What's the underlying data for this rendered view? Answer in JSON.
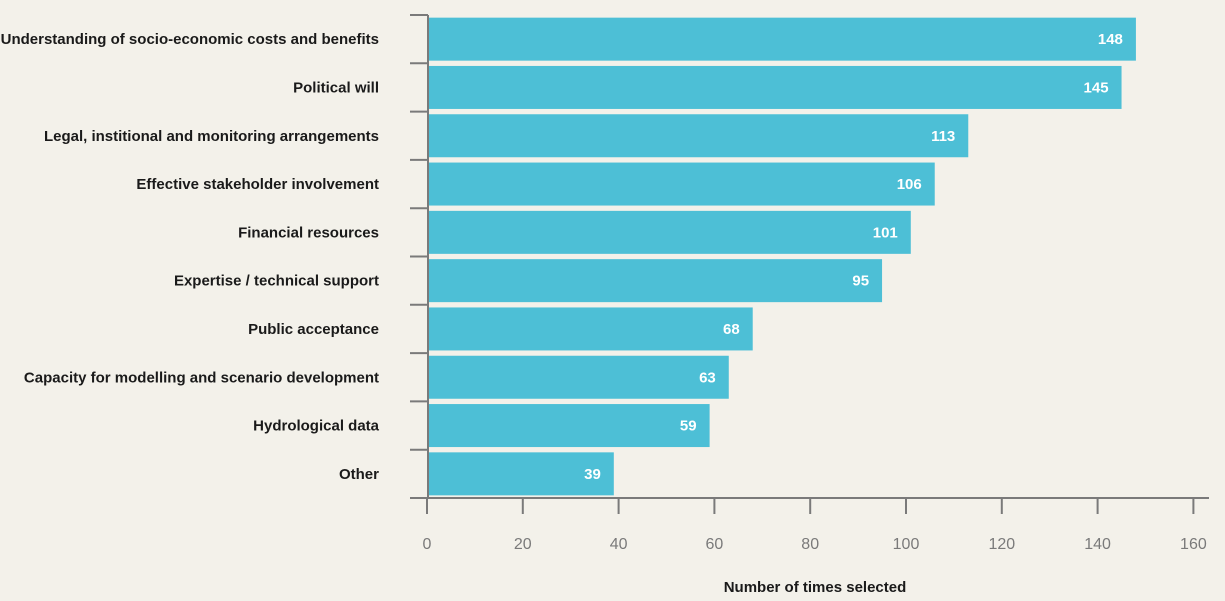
{
  "chart_data": {
    "type": "bar",
    "orientation": "horizontal",
    "categories": [
      "Understanding of socio-economic costs and benefits",
      "Political will",
      "Legal, institional and monitoring arrangements",
      "Effective stakeholder involvement",
      "Financial resources",
      "Expertise / technical support",
      "Public acceptance",
      "Capacity for modelling and scenario development",
      "Hydrological data",
      "Other"
    ],
    "values": [
      148,
      145,
      113,
      106,
      101,
      95,
      68,
      63,
      59,
      39
    ],
    "value_labels": [
      "148",
      "145",
      "113",
      "106",
      "101",
      "95",
      "68",
      "63",
      "59",
      "39"
    ],
    "xlabel": "Number of times selected",
    "ylabel": "",
    "xlim": [
      0,
      160
    ],
    "xticks": [
      "0",
      "20",
      "40",
      "60",
      "80",
      "100",
      "120",
      "140",
      "160"
    ],
    "grid": false,
    "legend": "none",
    "bar_color": "#4dbfd6",
    "axis_color": "#7a7a7a"
  }
}
